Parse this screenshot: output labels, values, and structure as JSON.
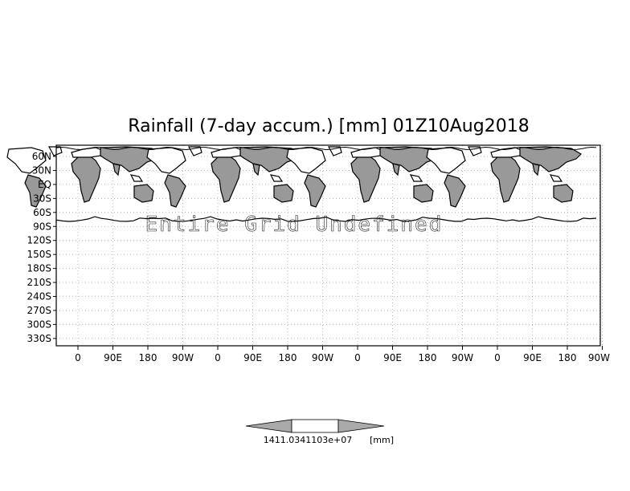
{
  "chart_data": {
    "type": "map",
    "title": "Rainfall (7-day accum.) [mm] 01Z10Aug2018",
    "annotation": "Entire Grid Undefined",
    "grid": true,
    "y_tick_labels": [
      "60N",
      "30N",
      "EQ",
      "30S",
      "60S",
      "90S",
      "120S",
      "150S",
      "180S",
      "210S",
      "240S",
      "270S",
      "300S",
      "330S"
    ],
    "x_tick_labels": [
      "0",
      "90E",
      "180",
      "90W",
      "0",
      "90E",
      "180",
      "90W",
      "0",
      "90E",
      "180",
      "90W",
      "0",
      "90E",
      "180",
      "90W"
    ],
    "colorbar": {
      "label_text": "1411.0341103e+07",
      "unit": "[mm]",
      "fill_colors": [
        "#aaaaaa",
        "#ffffff",
        "#aaaaaa"
      ]
    },
    "colors": {
      "land_shaded": "#999999",
      "grid": "#aaaaaa",
      "frame": "#000000"
    }
  }
}
